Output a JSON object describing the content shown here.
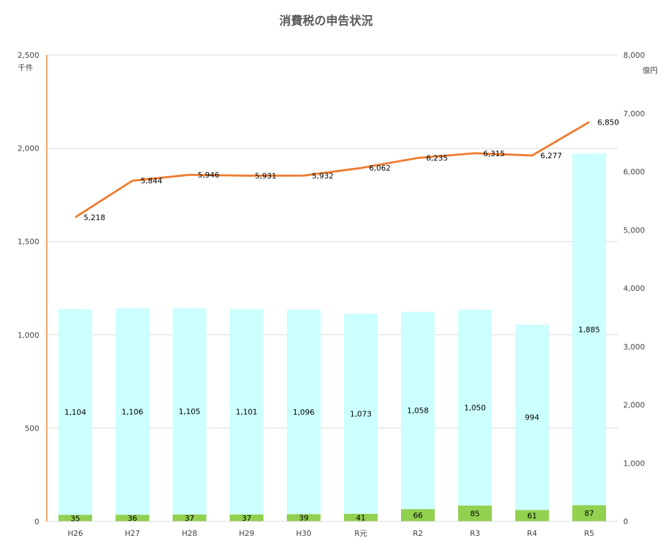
{
  "chart_data": {
    "type": "bar",
    "title": "消費税の申告状況",
    "categories": [
      "H26",
      "H27",
      "H28",
      "H29",
      "H30",
      "R元",
      "R2",
      "R3",
      "R4",
      "R5"
    ],
    "stacked": true,
    "series": [
      {
        "axis": "left",
        "type": "bar",
        "color": "#92d050",
        "values": [
          35,
          36,
          37,
          37,
          39,
          41,
          66,
          85,
          61,
          87
        ]
      },
      {
        "axis": "left",
        "type": "bar",
        "color": "#ccffff",
        "values": [
          1104,
          1106,
          1105,
          1101,
          1096,
          1073,
          1058,
          1050,
          994,
          1885
        ]
      },
      {
        "axis": "right",
        "type": "line",
        "color": "#ed7d31",
        "values": [
          5218,
          5844,
          5946,
          5931,
          5932,
          6062,
          6235,
          6315,
          6277,
          6850
        ]
      }
    ],
    "value_labels": {
      "bottom": [
        "35",
        "36",
        "37",
        "37",
        "39",
        "41",
        "66",
        "85",
        "61",
        "87"
      ],
      "top": [
        "1,104",
        "1,106",
        "1,105",
        "1,101",
        "1,096",
        "1,073",
        "1,058",
        "1,050",
        "994",
        "1,885"
      ],
      "line": [
        "5,218",
        "5,844",
        "5,946",
        "5,931",
        "5,932",
        "6,062",
        "6,235",
        "6,315",
        "6,277",
        "6,850"
      ]
    },
    "y_left": {
      "unit": "千件",
      "range": [
        0,
        2500
      ],
      "ticks": [
        0,
        500,
        1000,
        1500,
        2000,
        2500
      ],
      "tick_labels": [
        "0",
        "500",
        "1,000",
        "1,500",
        "2,000",
        "2,500"
      ]
    },
    "y_right": {
      "unit": "億円",
      "range": [
        0,
        8000
      ],
      "ticks": [
        0,
        1000,
        2000,
        3000,
        4000,
        5000,
        6000,
        7000,
        8000
      ],
      "tick_labels": [
        "0",
        "1,000",
        "2,000",
        "3,000",
        "4,000",
        "5,000",
        "6,000",
        "7,000",
        "8,000"
      ]
    },
    "grid": true,
    "legend": "none",
    "colors": {
      "axis_left": "#ed7d31",
      "gridline": "#d9d9d9"
    }
  }
}
